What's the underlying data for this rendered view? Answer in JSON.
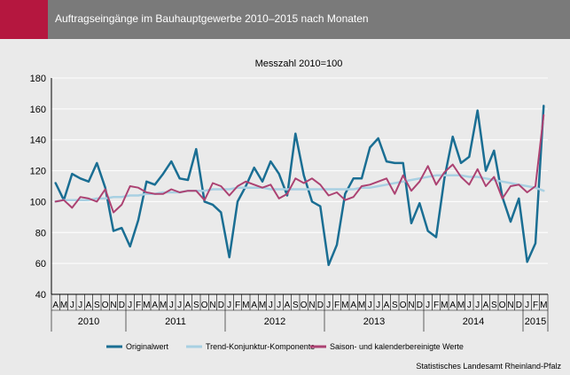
{
  "header": {
    "title": "Auftragseingänge im Bauhauptgewerbe 2010–2015 nach Monaten"
  },
  "source": "Statistisches Landesamt Rheinland-Pfalz",
  "colors": {
    "accent": "#b5173f",
    "header_bg": "#7a7a7a",
    "original": "#1a6e93",
    "trend": "#a8d0e2",
    "adjusted": "#ac4272"
  },
  "chart_data": {
    "type": "line",
    "title": "Messzahl 2010=100",
    "ylim": [
      40,
      180
    ],
    "yticks": [
      40,
      60,
      80,
      100,
      120,
      140,
      160,
      180
    ],
    "grid": true,
    "legend_position": "bottom",
    "month_labels": [
      "A",
      "M",
      "J",
      "J",
      "A",
      "S",
      "O",
      "N",
      "D",
      "J",
      "F",
      "M",
      "A",
      "M",
      "J",
      "J",
      "A",
      "S",
      "O",
      "N",
      "D",
      "J",
      "F",
      "M",
      "A",
      "M",
      "J",
      "J",
      "A",
      "S",
      "O",
      "N",
      "D",
      "J",
      "F",
      "M",
      "A",
      "M",
      "J",
      "J",
      "A",
      "S",
      "O",
      "N",
      "D",
      "J",
      "F",
      "M",
      "A",
      "M",
      "J",
      "J",
      "A",
      "S",
      "O",
      "N",
      "D",
      "J",
      "F",
      "M"
    ],
    "years": [
      {
        "label": "2010",
        "start": 0,
        "end": 9
      },
      {
        "label": "2011",
        "start": 9,
        "end": 21
      },
      {
        "label": "2012",
        "start": 21,
        "end": 33
      },
      {
        "label": "2013",
        "start": 33,
        "end": 45
      },
      {
        "label": "2014",
        "start": 45,
        "end": 57
      },
      {
        "label": "2015",
        "start": 57,
        "end": 60
      }
    ],
    "series": [
      {
        "name": "Originalwert",
        "color": "#1a6e93",
        "width": 2.5,
        "values": [
          112,
          101,
          118,
          115,
          113,
          125,
          109,
          81,
          83,
          71,
          88,
          113,
          111,
          118,
          126,
          115,
          114,
          134,
          100,
          98,
          93,
          64,
          100,
          110,
          122,
          113,
          126,
          118,
          104,
          144,
          117,
          100,
          97,
          59,
          72,
          105,
          115,
          115,
          135,
          141,
          126,
          125,
          125,
          86,
          99,
          81,
          77,
          115,
          142,
          125,
          129,
          159,
          120,
          133,
          103,
          87,
          102,
          61,
          73,
          162
        ]
      },
      {
        "name": "Trend-Konjunktur-Komponente",
        "color": "#a8d0e2",
        "width": 2.5,
        "values": [
          100,
          101,
          101,
          101,
          101,
          102,
          102,
          103,
          103,
          104,
          104,
          105,
          105,
          106,
          106,
          106,
          107,
          107,
          107,
          108,
          108,
          108,
          109,
          109,
          109,
          109,
          108,
          108,
          108,
          108,
          108,
          108,
          108,
          108,
          108,
          108,
          108,
          109,
          109,
          110,
          111,
          112,
          113,
          114,
          115,
          116,
          117,
          117,
          117,
          117,
          116,
          116,
          115,
          114,
          113,
          112,
          111,
          110,
          109,
          107
        ]
      },
      {
        "name": "Saison- und kalenderbereinigte Werte",
        "color": "#ac4272",
        "width": 2,
        "values": [
          100,
          101,
          96,
          103,
          102,
          100,
          108,
          93,
          98,
          110,
          109,
          106,
          105,
          105,
          108,
          106,
          107,
          107,
          101,
          112,
          110,
          104,
          110,
          113,
          111,
          109,
          111,
          102,
          105,
          115,
          112,
          115,
          111,
          104,
          106,
          101,
          103,
          110,
          111,
          113,
          115,
          105,
          117,
          107,
          113,
          123,
          111,
          119,
          124,
          116,
          111,
          121,
          110,
          116,
          102,
          110,
          111,
          106,
          110,
          156
        ]
      }
    ]
  }
}
